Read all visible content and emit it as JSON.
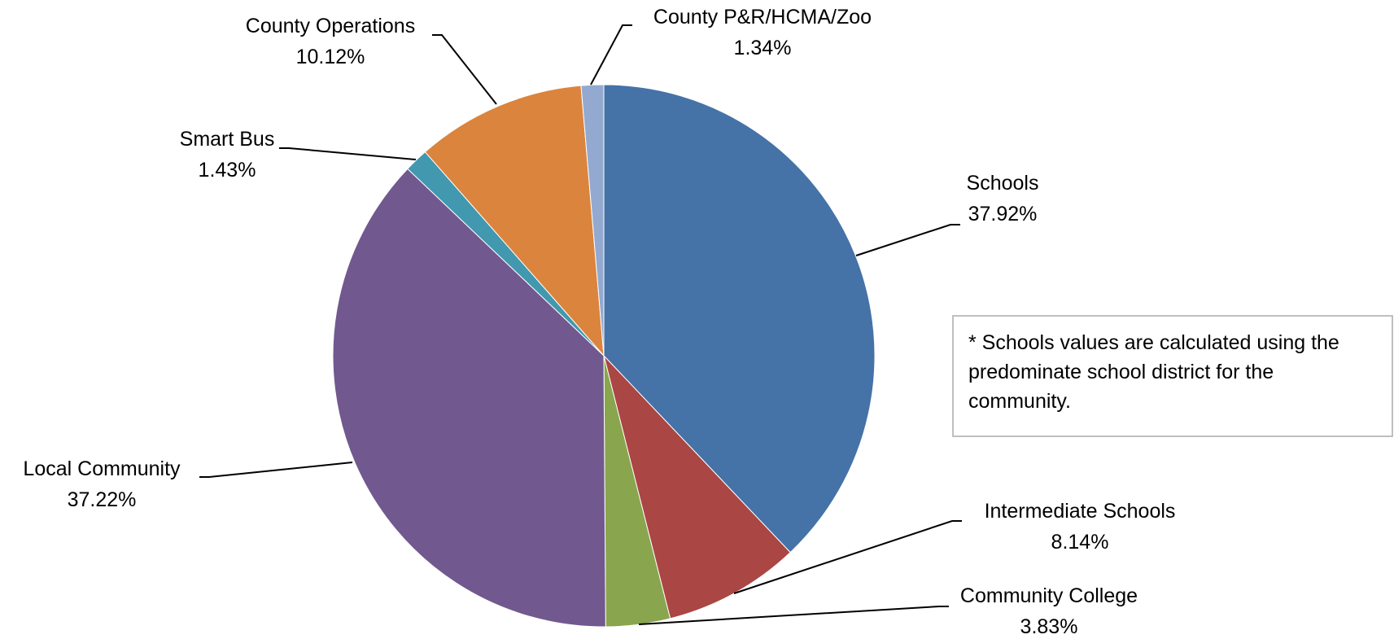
{
  "chart_data": {
    "type": "pie",
    "title": "",
    "slices": [
      {
        "name": "Schools",
        "value": 37.92,
        "label": "37.92%",
        "color": "#4572A7"
      },
      {
        "name": "Intermediate Schools",
        "value": 8.14,
        "label": "8.14%",
        "color": "#AA4643"
      },
      {
        "name": "Community College",
        "value": 3.83,
        "label": "3.83%",
        "color": "#89A54E"
      },
      {
        "name": "Local Community",
        "value": 37.22,
        "label": "37.22%",
        "color": "#71588F"
      },
      {
        "name": "Smart Bus",
        "value": 1.43,
        "label": "1.43%",
        "color": "#4198AF"
      },
      {
        "name": "County Operations",
        "value": 10.12,
        "label": "10.12%",
        "color": "#DB843D"
      },
      {
        "name": "County P&R/HCMA/Zoo",
        "value": 1.34,
        "label": "1.34%",
        "color": "#93A9CF"
      }
    ],
    "start_angle_deg": 0,
    "direction": "clockwise",
    "legend": "none",
    "data_labels": "outside-with-leader-lines"
  },
  "note": {
    "text": "* Schools values are calculated using the predominate school district for the community."
  }
}
